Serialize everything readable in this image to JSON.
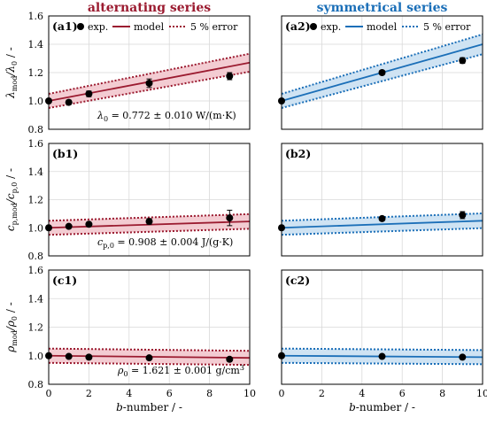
{
  "column_titles": [
    {
      "text": "alternating series",
      "color": "#9b1b30"
    },
    {
      "text": "symmetrical series",
      "color": "#1b6fb8"
    }
  ],
  "legend": {
    "exp": "exp.",
    "model": "model",
    "error": "5 % error"
  },
  "colors": {
    "alternating_line": "#9b1b30",
    "alternating_fill": "#f3ccd2",
    "symmetrical_line": "#1b6fb8",
    "symmetrical_fill": "#cfe3f3"
  },
  "rows": [
    {
      "ylabel_main": "λ",
      "ylabel_sub1": "mod",
      "ylabel_mid": "/λ",
      "ylabel_sub2": "0",
      "ylabel_tail": " / -",
      "anno_main": "λ",
      "anno_sub": "0",
      "anno_rest": " = 0.772 ± 0.010 W/(m·K)"
    },
    {
      "ylabel_main": "c",
      "ylabel_sub1": "p,mod",
      "ylabel_mid": "/c",
      "ylabel_sub2": "p,0",
      "ylabel_tail": " / -",
      "anno_main": "c",
      "anno_sub": "p,0",
      "anno_rest": " = 0.908 ± 0.004 J/(g·K)"
    },
    {
      "ylabel_main": "ρ",
      "ylabel_sub1": "mod",
      "ylabel_mid": "/ρ",
      "ylabel_sub2": "0",
      "ylabel_tail": " / -",
      "anno_main": "ρ",
      "anno_sub": "0",
      "anno_rest": " = 1.621 ± 0.001 g/cm",
      "anno_sup": "3"
    }
  ],
  "xlabel": {
    "italic": "b",
    "rest": "-number / -"
  },
  "chart_data": [
    {
      "id": "a1",
      "type": "line",
      "label": "(a1)",
      "series_kind": "alternating",
      "xlim": [
        0,
        10
      ],
      "ylim": [
        0.8,
        1.6
      ],
      "xticks": [
        0,
        2,
        4,
        6,
        8,
        10
      ],
      "yticks": [
        0.8,
        1.0,
        1.2,
        1.4,
        1.6
      ],
      "model": {
        "x": [
          0,
          10
        ],
        "y": [
          1.0,
          1.27
        ]
      },
      "error_pct": 5,
      "points": [
        {
          "x": 0,
          "y": 1.0,
          "err": 0.01
        },
        {
          "x": 1,
          "y": 0.99,
          "err": 0.015
        },
        {
          "x": 2,
          "y": 1.05,
          "err": 0.02
        },
        {
          "x": 5,
          "y": 1.125,
          "err": 0.03
        },
        {
          "x": 9,
          "y": 1.175,
          "err": 0.025
        }
      ]
    },
    {
      "id": "a2",
      "type": "line",
      "label": "(a2)",
      "series_kind": "symmetrical",
      "xlim": [
        0,
        10
      ],
      "ylim": [
        0.8,
        1.6
      ],
      "xticks": [
        0,
        2,
        4,
        6,
        8,
        10
      ],
      "yticks": [
        0.8,
        1.0,
        1.2,
        1.4,
        1.6
      ],
      "model": {
        "x": [
          0,
          10
        ],
        "y": [
          1.0,
          1.4
        ]
      },
      "error_pct": 5,
      "points": [
        {
          "x": 0,
          "y": 1.0,
          "err": 0.01
        },
        {
          "x": 5,
          "y": 1.2,
          "err": 0.015
        },
        {
          "x": 9,
          "y": 1.285,
          "err": 0.02
        }
      ]
    },
    {
      "id": "b1",
      "type": "line",
      "label": "(b1)",
      "series_kind": "alternating",
      "xlim": [
        0,
        10
      ],
      "ylim": [
        0.8,
        1.6
      ],
      "xticks": [
        0,
        2,
        4,
        6,
        8,
        10
      ],
      "yticks": [
        0.8,
        1.0,
        1.2,
        1.4,
        1.6
      ],
      "model": {
        "x": [
          0,
          10
        ],
        "y": [
          1.0,
          1.045
        ]
      },
      "error_pct": 5,
      "points": [
        {
          "x": 0,
          "y": 1.0,
          "err": 0.01
        },
        {
          "x": 1,
          "y": 1.01,
          "err": 0.01
        },
        {
          "x": 2,
          "y": 1.025,
          "err": 0.015
        },
        {
          "x": 5,
          "y": 1.045,
          "err": 0.02
        },
        {
          "x": 9,
          "y": 1.07,
          "err": 0.055
        }
      ]
    },
    {
      "id": "b2",
      "type": "line",
      "label": "(b2)",
      "series_kind": "symmetrical",
      "xlim": [
        0,
        10
      ],
      "ylim": [
        0.8,
        1.6
      ],
      "xticks": [
        0,
        2,
        4,
        6,
        8,
        10
      ],
      "yticks": [
        0.8,
        1.0,
        1.2,
        1.4,
        1.6
      ],
      "model": {
        "x": [
          0,
          10
        ],
        "y": [
          1.0,
          1.05
        ]
      },
      "error_pct": 5,
      "points": [
        {
          "x": 0,
          "y": 1.0,
          "err": 0.01
        },
        {
          "x": 5,
          "y": 1.065,
          "err": 0.015
        },
        {
          "x": 9,
          "y": 1.09,
          "err": 0.025
        }
      ]
    },
    {
      "id": "c1",
      "type": "line",
      "label": "(c1)",
      "series_kind": "alternating",
      "xlim": [
        0,
        10
      ],
      "ylim": [
        0.8,
        1.6
      ],
      "xticks": [
        0,
        2,
        4,
        6,
        8,
        10
      ],
      "yticks": [
        0.8,
        1.0,
        1.2,
        1.4,
        1.6
      ],
      "model": {
        "x": [
          0,
          10
        ],
        "y": [
          1.0,
          0.985
        ]
      },
      "error_pct": 5,
      "points": [
        {
          "x": 0,
          "y": 1.0,
          "err": 0.005
        },
        {
          "x": 1,
          "y": 0.995,
          "err": 0.005
        },
        {
          "x": 2,
          "y": 0.99,
          "err": 0.005
        },
        {
          "x": 5,
          "y": 0.985,
          "err": 0.005
        },
        {
          "x": 9,
          "y": 0.975,
          "err": 0.005
        }
      ]
    },
    {
      "id": "c2",
      "type": "line",
      "label": "(c2)",
      "series_kind": "symmetrical",
      "xlim": [
        0,
        10
      ],
      "ylim": [
        0.8,
        1.6
      ],
      "xticks": [
        0,
        2,
        4,
        6,
        8,
        10
      ],
      "yticks": [
        0.8,
        1.0,
        1.2,
        1.4,
        1.6
      ],
      "model": {
        "x": [
          0,
          10
        ],
        "y": [
          1.0,
          0.99
        ]
      },
      "error_pct": 5,
      "points": [
        {
          "x": 0,
          "y": 1.0,
          "err": 0.005
        },
        {
          "x": 5,
          "y": 0.995,
          "err": 0.005
        },
        {
          "x": 9,
          "y": 0.99,
          "err": 0.005
        }
      ]
    }
  ]
}
